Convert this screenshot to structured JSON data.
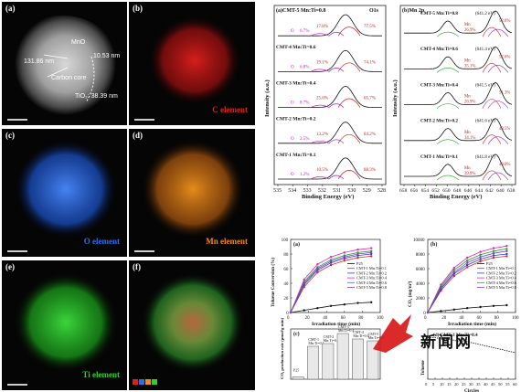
{
  "tem": {
    "label": "(a)",
    "annotations": {
      "mno": "MnO",
      "mno_size": "10.53 nm",
      "size_left": "131.86 nm",
      "carbon": "Carbon core",
      "tio2": "TiO₂: 38.39 nm"
    }
  },
  "maps": [
    {
      "label": "(b)",
      "element": "C element",
      "color": "#e0201e"
    },
    {
      "label": "(c)",
      "element": "O element",
      "color": "#2a6fe8"
    },
    {
      "label": "(d)",
      "element": "Mn element",
      "color": "#f08a1c"
    },
    {
      "label": "(e)",
      "element": "Ti element",
      "color": "#2fcf2f"
    },
    {
      "label": "(f)",
      "element": "",
      "color": "#c8a050"
    }
  ],
  "xps_o1s": {
    "label": "(a)",
    "title": "O1s",
    "ylabel": "Intensity (a.u.)",
    "xlabel": "Binding Energy (eV)",
    "xticks": [
      "535",
      "534",
      "533",
      "532",
      "531",
      "530",
      "529",
      "528"
    ],
    "rows": [
      {
        "name": "CMT-5 Mn:Ti=0.8",
        "ov": "6.7%",
        "oc": "17.8%",
        "ol": "77.5%"
      },
      {
        "name": "CMT-4 Mn:Ti=0.6",
        "ov": "6.8%",
        "oc": "19.1%",
        "ol": "74.1%"
      },
      {
        "name": "CMT-3 Mn:Ti=0.4",
        "ov": "8.7%",
        "oc": "25.6%",
        "ol": "65.7%"
      },
      {
        "name": "CMT-2 Mn:Ti=0.2",
        "ov": "2.5%",
        "oc": "13.2%",
        "ol": "84.2%"
      },
      {
        "name": "CMT-1 Mn:Ti=0.1",
        "ov": "1.2%",
        "oc": "10.5%",
        "ol": "88.3%"
      }
    ]
  },
  "xps_mn2p": {
    "label": "(b)",
    "title": "Mn 2p",
    "ylabel": "Intensity (a.u.)",
    "xlabel": "Binding Energy (eV)",
    "xticks": [
      "658",
      "656",
      "654",
      "652",
      "650",
      "648",
      "646",
      "644",
      "642",
      "640",
      "638"
    ],
    "rows": [
      {
        "name": "CMT-5 Mn:Ti=0.8",
        "ev": "(641.2 eV)",
        "a": "26.9%",
        "b": "52.6%"
      },
      {
        "name": "CMT-4 Mn:Ti=0.6",
        "ev": "(641.4 eV)",
        "a": "35.1%",
        "b": "52.6%"
      },
      {
        "name": "CMT-3 Mn:Ti=0.4",
        "ev": "(641.5 eV)",
        "a": "26.9%",
        "b": "51.3%"
      },
      {
        "name": "CMT-2 Mn:Ti=0.2",
        "ev": "(641.6 eV)",
        "a": "34.1%",
        "b": "48.5%"
      },
      {
        "name": "CMT-1 Mn:Ti=0.1",
        "ev": "(641.8 eV)",
        "a": "39.9%",
        "b": "48.0%"
      }
    ]
  },
  "chart_data": [
    {
      "type": "line",
      "label": "(a)",
      "xlabel": "Irradiation time (min)",
      "ylabel": "Toluene Conversion (%)",
      "x": [
        0,
        15,
        30,
        45,
        60,
        75,
        90
      ],
      "xlim": [
        0,
        100
      ],
      "ylim": [
        0,
        100
      ],
      "xticks": [
        0,
        20,
        40,
        60,
        80,
        100
      ],
      "yticks": [
        0,
        20,
        40,
        60,
        80,
        100
      ],
      "series": [
        {
          "name": "P25",
          "color": "#111111",
          "values": [
            0,
            3,
            6,
            9,
            11,
            13,
            14
          ]
        },
        {
          "name": "CMT-1 Mn:Ti=0.1",
          "color": "#e02020",
          "values": [
            0,
            35,
            55,
            65,
            71,
            75,
            77
          ]
        },
        {
          "name": "CMT-2 Mn:Ti=0.2",
          "color": "#2040e0",
          "values": [
            0,
            38,
            58,
            68,
            74,
            78,
            80
          ]
        },
        {
          "name": "CMT-3 Mn:Ti=0.4",
          "color": "#e020c0",
          "values": [
            0,
            45,
            66,
            76,
            82,
            86,
            88
          ]
        },
        {
          "name": "CMT-4 Mn:Ti=0.6",
          "color": "#20a020",
          "values": [
            0,
            42,
            62,
            72,
            78,
            82,
            84
          ]
        },
        {
          "name": "CMT-5 Mn:Ti=0.8",
          "color": "#8040c0",
          "values": [
            0,
            40,
            60,
            70,
            76,
            80,
            82
          ]
        }
      ]
    },
    {
      "type": "line",
      "label": "(b)",
      "xlabel": "Irradiation time (min)",
      "ylabel": "CO₂ (mg/m³)",
      "x": [
        0,
        15,
        30,
        45,
        60,
        75,
        90
      ],
      "xlim": [
        0,
        100
      ],
      "ylim": [
        0,
        10000
      ],
      "xticks": [
        0,
        20,
        40,
        60,
        80,
        100
      ],
      "yticks": [
        0,
        2000,
        4000,
        6000,
        8000,
        10000
      ],
      "series": [
        {
          "name": "P25",
          "color": "#111111",
          "values": [
            0,
            200,
            400,
            600,
            750,
            900,
            1000
          ]
        },
        {
          "name": "CMT-1 Mn:Ti=0.1",
          "color": "#e02020",
          "values": [
            0,
            3000,
            5000,
            6200,
            7000,
            7500,
            7700
          ]
        },
        {
          "name": "CMT-2 Mn:Ti=0.2",
          "color": "#2040e0",
          "values": [
            0,
            3200,
            5300,
            6500,
            7300,
            7800,
            8000
          ]
        },
        {
          "name": "CMT-3 Mn:Ti=0.4",
          "color": "#e020c0",
          "values": [
            0,
            3800,
            6100,
            7500,
            8300,
            8800,
            9100
          ]
        },
        {
          "name": "CMT-4 Mn:Ti=0.6",
          "color": "#20a020",
          "values": [
            0,
            3600,
            5800,
            7100,
            7900,
            8400,
            8700
          ]
        },
        {
          "name": "CMT-5 Mn:Ti=0.8",
          "color": "#8040c0",
          "values": [
            0,
            3400,
            5500,
            6800,
            7600,
            8100,
            8400
          ]
        }
      ]
    },
    {
      "type": "bar",
      "label": "(c)",
      "ylabel": "CO₂ production rate (μmol/g·min)",
      "categories": [
        "P25",
        "CMT-1 Mn:Ti=0.1",
        "CMT-2 Mn:Ti=0.2",
        "CMT-3 Mn:Ti=0.4",
        "CMT-4 Mn:Ti=0.6",
        "CMT-5 Mn:Ti=0.8"
      ],
      "values": [
        5,
        72,
        78,
        100,
        88,
        84
      ],
      "ylim": [
        0,
        110
      ]
    },
    {
      "type": "line",
      "label": "(d)",
      "title": "(d) CMT-3 Mn:Ti=0.4",
      "xlabel": "Circles",
      "ylabel": "Toluene",
      "x": [
        0,
        5,
        10,
        15,
        20,
        25,
        30,
        35,
        40,
        45,
        50,
        55,
        60
      ],
      "xticks": [
        0,
        5,
        10,
        15,
        20,
        25,
        30,
        35,
        40,
        45,
        50,
        55,
        60
      ],
      "series": [
        {
          "name": "CMT-3 Mn:Ti=0.4",
          "color": "#111111",
          "values": [
            97,
            97,
            96,
            96,
            95,
            95,
            94,
            93,
            92,
            91,
            90,
            89,
            88
          ]
        }
      ]
    }
  ],
  "watermark": {
    "text": "新闻网"
  }
}
